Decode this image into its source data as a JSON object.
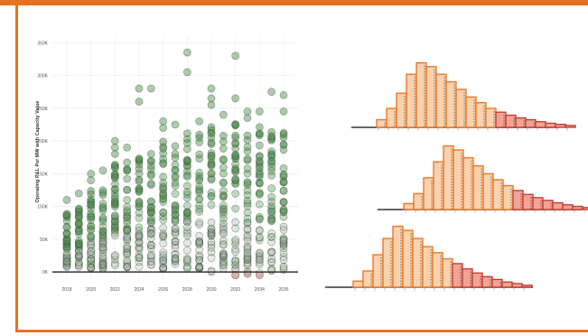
{
  "colors": {
    "frame": "#e8711f",
    "dot_green": "#4f8a4f",
    "dot_grey": "#9aa39a",
    "dot_red": "#d98a8a",
    "hist_fill_light": "#fbd2ad",
    "hist_fill_dark": "#f3a396",
    "hist_stroke_orange": "#e8711f",
    "hist_stroke_red": "#c0392b"
  },
  "chart_data": [
    {
      "type": "scatter",
      "ylabel": "Operating P&L Per MW with Capacity Value",
      "xlabel": "",
      "x_ticks": [
        "2018",
        "2020",
        "2022",
        "2024",
        "2026",
        "2028",
        "2030",
        "2032",
        "2034",
        "2036"
      ],
      "y_ticks": [
        "0K",
        "50K",
        "100K",
        "150K",
        "200K",
        "250K",
        "300K",
        "350K"
      ],
      "ylim": [
        -15000,
        360000
      ],
      "xlim": [
        2016.8,
        2037.2
      ],
      "grid": true,
      "columns": [
        {
          "year": 2018,
          "min": 5000,
          "max": 90000,
          "outliers": [
            110000
          ]
        },
        {
          "year": 2019,
          "min": 5000,
          "max": 100000,
          "outliers": [
            120000
          ]
        },
        {
          "year": 2020,
          "min": 5000,
          "max": 125000,
          "outliers": [
            140000,
            150000
          ]
        },
        {
          "year": 2021,
          "min": 5000,
          "max": 135000,
          "outliers": [
            155000
          ]
        },
        {
          "year": 2022,
          "min": 5000,
          "max": 165000,
          "outliers": [
            180000,
            190000,
            200000
          ]
        },
        {
          "year": 2023,
          "min": 5000,
          "max": 175000,
          "outliers": [
            190000
          ]
        },
        {
          "year": 2024,
          "min": 5000,
          "max": 180000,
          "outliers": [
            260000,
            280000
          ]
        },
        {
          "year": 2025,
          "min": 5000,
          "max": 185000,
          "outliers": [
            280000
          ]
        },
        {
          "year": 2026,
          "min": 5000,
          "max": 200000,
          "outliers": [
            220000,
            230000
          ]
        },
        {
          "year": 2027,
          "min": 5000,
          "max": 205000,
          "outliers": [
            225000
          ]
        },
        {
          "year": 2028,
          "min": 5000,
          "max": 220000,
          "outliers": [
            305000,
            335000
          ]
        },
        {
          "year": 2029,
          "min": 5000,
          "max": 210000,
          "outliers": [
            230000
          ]
        },
        {
          "year": 2030,
          "min": 0,
          "max": 225000,
          "outliers": [
            255000,
            265000,
            280000
          ]
        },
        {
          "year": 2031,
          "min": 0,
          "max": 210000,
          "outliers": [
            240000
          ]
        },
        {
          "year": 2032,
          "min": -5000,
          "max": 230000,
          "outliers": [
            265000,
            330000
          ]
        },
        {
          "year": 2033,
          "min": 0,
          "max": 215000,
          "outliers": [
            235000,
            245000
          ]
        },
        {
          "year": 2034,
          "min": -5000,
          "max": 230000,
          "outliers": [
            245000
          ]
        },
        {
          "year": 2035,
          "min": 0,
          "max": 220000,
          "outliers": [
            275000
          ]
        },
        {
          "year": 2036,
          "min": 0,
          "max": 215000,
          "outliers": [
            245000,
            270000
          ]
        }
      ],
      "negative_points": [
        {
          "x": 2032,
          "y": -5000
        },
        {
          "x": 2033,
          "y": -3000
        },
        {
          "x": 2034,
          "y": -5000
        }
      ]
    },
    {
      "type": "bar",
      "values": [
        2,
        5,
        9,
        14,
        17,
        16,
        14,
        12,
        10,
        8,
        6.5,
        5,
        4,
        3.2,
        2.5,
        2,
        1.5,
        1.1,
        0.8,
        0.5
      ],
      "dark_from_index": 12
    },
    {
      "type": "bar",
      "values": [
        1.5,
        4,
        8,
        12,
        16,
        15,
        13,
        11,
        9,
        7.5,
        6,
        4.8,
        3.8,
        3,
        2.3,
        1.7,
        1.2,
        0.8,
        0.5
      ],
      "dark_from_index": 11
    },
    {
      "type": "bar",
      "values": [
        1.5,
        4,
        8,
        12,
        15,
        14,
        12,
        10,
        8.5,
        7,
        5.8,
        4.5,
        3.5,
        2.6,
        1.9,
        1.3,
        0.9,
        0.5
      ],
      "dark_from_index": 10
    }
  ]
}
